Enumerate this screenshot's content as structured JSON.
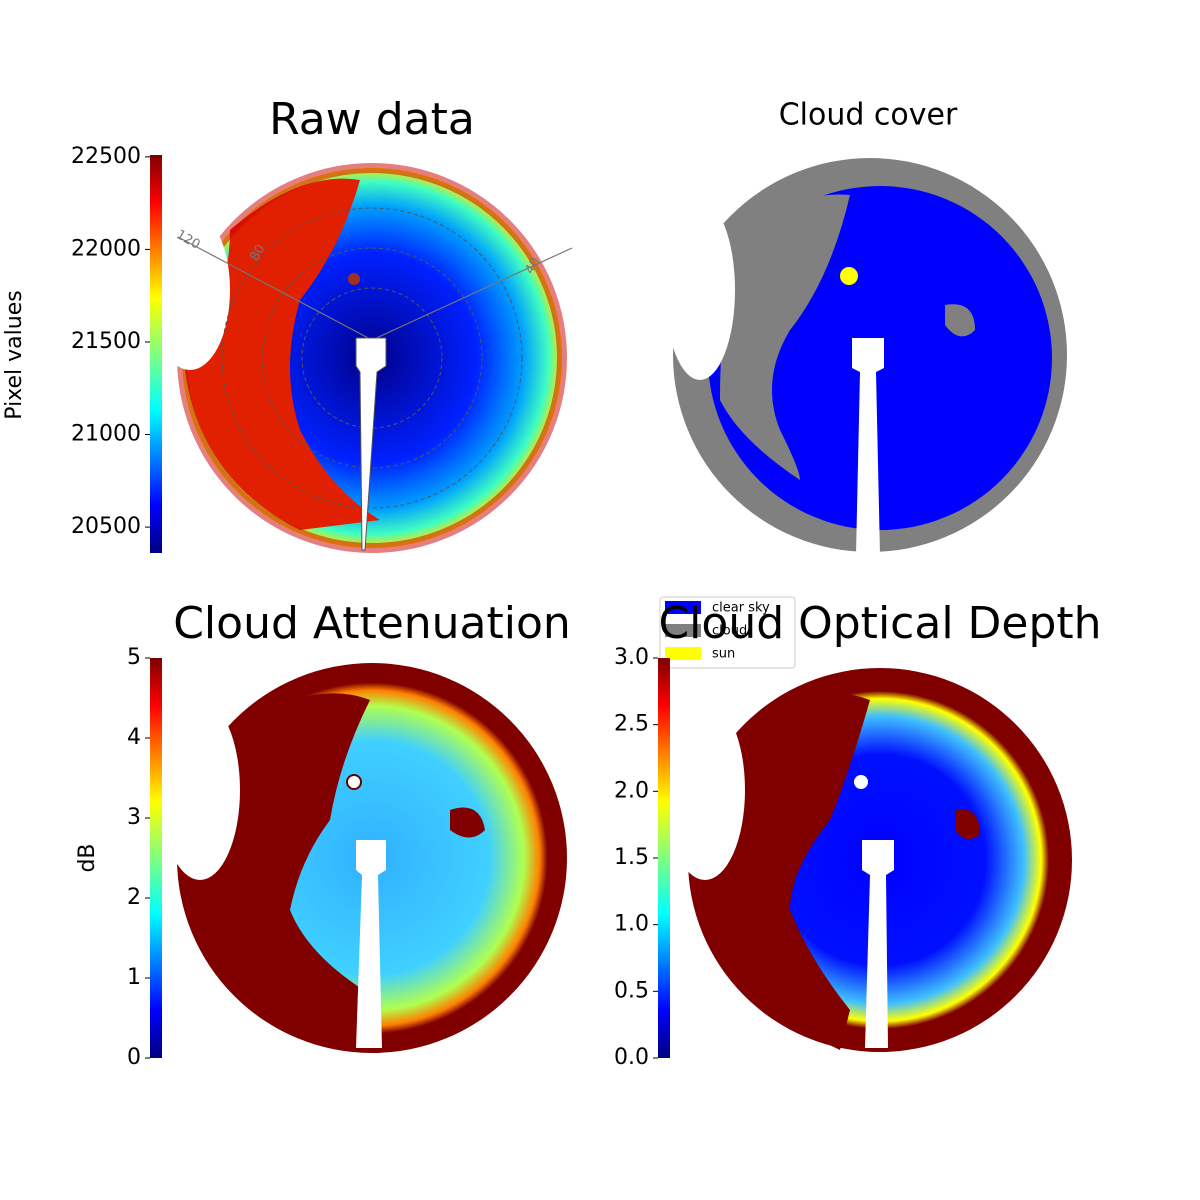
{
  "chart_data": [
    {
      "type": "image",
      "title": "Raw data",
      "colorbar_label": "Pixel values",
      "colormap": "jet",
      "ylim": [
        20360,
        22510
      ],
      "yticks": [
        20500,
        21000,
        21500,
        22000,
        22500
      ],
      "polar_labels": [
        "120",
        "80",
        "40"
      ]
    },
    {
      "type": "image",
      "title": "Cloud cover",
      "series": [
        {
          "name": "clear sky",
          "color": "#0000ff"
        },
        {
          "name": "cloud",
          "color": "#808080"
        },
        {
          "name": "sun",
          "color": "#ffff00"
        }
      ]
    },
    {
      "type": "image",
      "title": "Cloud Attenuation",
      "colorbar_label": "dB",
      "colormap": "jet",
      "ylim": [
        0,
        5
      ],
      "yticks": [
        0,
        1,
        2,
        3,
        4,
        5
      ]
    },
    {
      "type": "image",
      "title": "Cloud Optical Depth",
      "colormap": "jet",
      "ylim": [
        0,
        3
      ],
      "yticks": [
        {
          "value": 0,
          "label": "0.0"
        },
        0.5,
        {
          "value": 1,
          "label": "1.0"
        },
        1.5,
        {
          "value": 2,
          "label": "2.0"
        },
        2.5,
        {
          "value": 3,
          "label": "3.0"
        }
      ]
    }
  ]
}
